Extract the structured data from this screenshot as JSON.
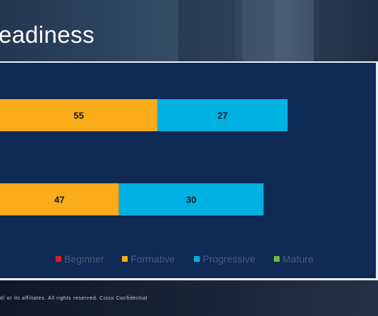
{
  "slide": {
    "title": "eadiness",
    "footer": "d/ or its affiliates. All rights reserved. Cisco Confidential"
  },
  "chart_data": {
    "type": "bar",
    "orientation": "horizontal",
    "stacked": true,
    "categories": [
      "",
      ""
    ],
    "series": [
      {
        "name": "Beginner",
        "color": "#e21f1f",
        "values": [
          null,
          null
        ]
      },
      {
        "name": "Formative",
        "color": "#f9ab18",
        "values": [
          55,
          47
        ]
      },
      {
        "name": "Progressive",
        "color": "#00b2e2",
        "values": [
          27,
          30
        ]
      },
      {
        "name": "Mature",
        "color": "#6dba3c",
        "values": [
          null,
          null
        ]
      }
    ],
    "legend_position": "bottom",
    "grid": false
  }
}
